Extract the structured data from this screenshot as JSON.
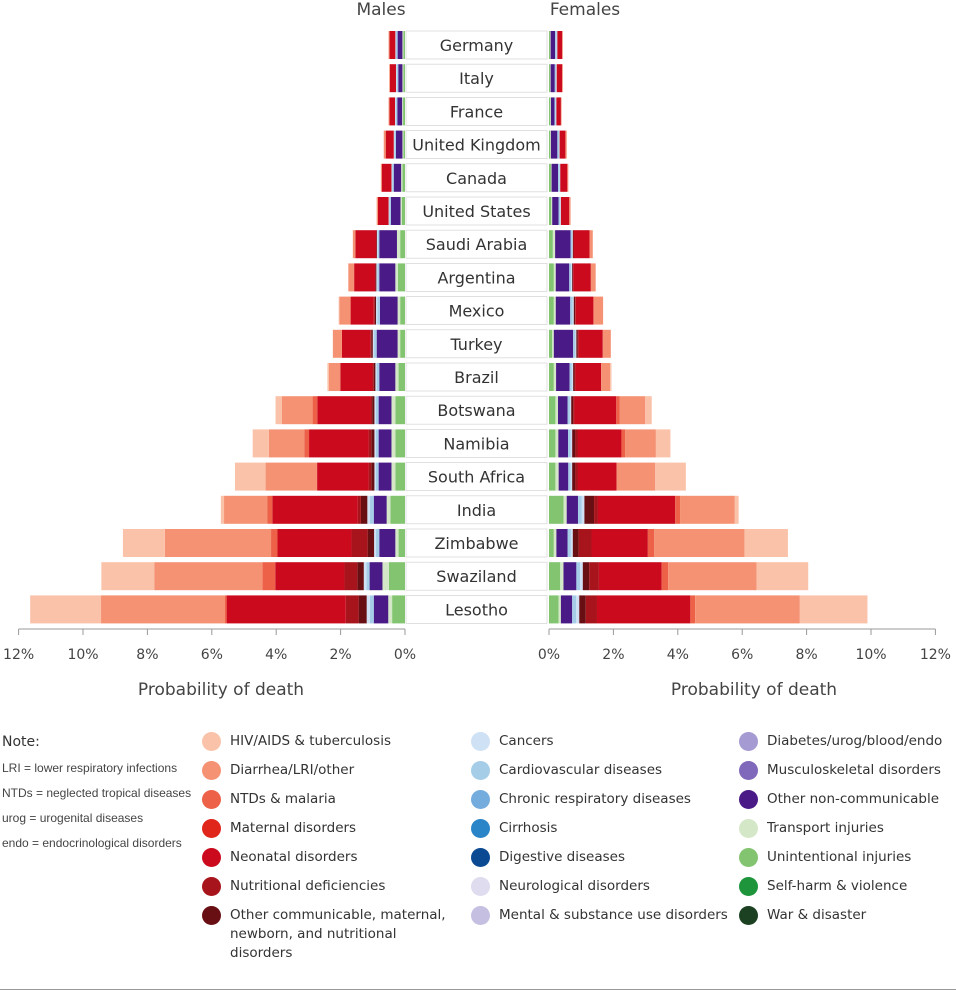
{
  "headers": {
    "males": "Males",
    "females": "Females"
  },
  "axis_titles": {
    "left": "Probability of death",
    "right": "Probability of death"
  },
  "note": {
    "title": "Note:",
    "lines": [
      "LRI = lower respiratory infections",
      "NTDs = neglected tropical diseases",
      "urog = urogenital diseases",
      "endo = endocrinological disorders"
    ]
  },
  "colors": {
    "hiv": "#fbc2aa",
    "diarrhea": "#f59273",
    "ntd": "#ec6148",
    "maternal": "#e0251a",
    "neonatal": "#cb0a1e",
    "nutrition": "#a8141b",
    "othercomm": "#680f14",
    "cancers": "#cfe1f4",
    "cardio": "#a5cde8",
    "chronicresp": "#74acdd",
    "cirrhosis": "#2a85c8",
    "digestive": "#0b4a93",
    "neuro": "#dedcee",
    "mental": "#c5c0e2",
    "diabetes": "#a59ad2",
    "musculo": "#8069bb",
    "otherncd": "#4a1a87",
    "transport": "#d4e8c8",
    "unintentional": "#82c46f",
    "selfharm": "#1e943b",
    "war": "#1c4022"
  },
  "legend": [
    [
      {
        "key": "hiv",
        "label": "HIV/AIDS & tuberculosis"
      },
      {
        "key": "diarrhea",
        "label": "Diarrhea/LRI/other"
      },
      {
        "key": "ntd",
        "label": "NTDs & malaria"
      },
      {
        "key": "maternal",
        "label": "Maternal disorders"
      },
      {
        "key": "neonatal",
        "label": "Neonatal disorders"
      },
      {
        "key": "nutrition",
        "label": "Nutritional deficiencies"
      },
      {
        "key": "othercomm",
        "label": "Other communicable, maternal, newborn, and nutritional disorders"
      }
    ],
    [
      {
        "key": "cancers",
        "label": "Cancers"
      },
      {
        "key": "cardio",
        "label": "Cardiovascular diseases"
      },
      {
        "key": "chronicresp",
        "label": "Chronic respiratory diseases"
      },
      {
        "key": "cirrhosis",
        "label": "Cirrhosis"
      },
      {
        "key": "digestive",
        "label": "Digestive diseases"
      },
      {
        "key": "neuro",
        "label": "Neurological disorders"
      },
      {
        "key": "mental",
        "label": "Mental & substance use disorders"
      }
    ],
    [
      {
        "key": "diabetes",
        "label": "Diabetes/urog/blood/endo"
      },
      {
        "key": "musculo",
        "label": "Musculoskeletal disorders"
      },
      {
        "key": "otherncd",
        "label": "Other non-communicable"
      },
      {
        "key": "transport",
        "label": "Transport injuries"
      },
      {
        "key": "unintentional",
        "label": "Unintentional injuries"
      },
      {
        "key": "selfharm",
        "label": "Self-harm & violence"
      },
      {
        "key": "war",
        "label": "War & disaster"
      }
    ]
  ],
  "chart_data": {
    "type": "bar",
    "orientation": "horizontal-diverging",
    "x_unit": "%",
    "xlim": [
      0,
      12
    ],
    "x_ticks": [
      "0%",
      "2%",
      "4%",
      "6%",
      "8%",
      "10%",
      "12%"
    ],
    "stack_order_from_center": [
      "unintentional",
      "transport",
      "otherncd",
      "cardio",
      "cancers",
      "othercomm",
      "nutrition",
      "neonatal",
      "ntd",
      "diarrhea",
      "hiv"
    ],
    "series": [
      {
        "name": "Unintentional injuries",
        "key": "unintentional"
      },
      {
        "name": "Transport injuries",
        "key": "transport"
      },
      {
        "name": "Other non-communicable",
        "key": "otherncd"
      },
      {
        "name": "Cardiovascular diseases",
        "key": "cardio"
      },
      {
        "name": "Cancers",
        "key": "cancers"
      },
      {
        "name": "Other communicable, maternal, newborn, and nutritional disorders",
        "key": "othercomm"
      },
      {
        "name": "Nutritional deficiencies",
        "key": "nutrition"
      },
      {
        "name": "Neonatal disorders",
        "key": "neonatal"
      },
      {
        "name": "NTDs & malaria",
        "key": "ntd"
      },
      {
        "name": "Diarrhea/LRI/other",
        "key": "diarrhea"
      },
      {
        "name": "HIV/AIDS & tuberculosis",
        "key": "hiv"
      }
    ],
    "countries": [
      {
        "name": "Germany",
        "males": {
          "unintentional": 0.05,
          "transport": 0.03,
          "otherncd": 0.15,
          "cardio": 0.05,
          "cancers": 0.02,
          "othercomm": 0.0,
          "nutrition": 0.0,
          "neonatal": 0.18,
          "ntd": 0.0,
          "diarrhea": 0.03,
          "hiv": 0.0
        },
        "females": {
          "unintentional": 0.03,
          "transport": 0.02,
          "otherncd": 0.14,
          "cardio": 0.05,
          "cancers": 0.02,
          "othercomm": 0.0,
          "nutrition": 0.0,
          "neonatal": 0.15,
          "ntd": 0.0,
          "diarrhea": 0.02,
          "hiv": 0.0
        }
      },
      {
        "name": "Italy",
        "males": {
          "unintentional": 0.05,
          "transport": 0.03,
          "otherncd": 0.13,
          "cardio": 0.05,
          "cancers": 0.02,
          "othercomm": 0.0,
          "nutrition": 0.0,
          "neonatal": 0.19,
          "ntd": 0.0,
          "diarrhea": 0.02,
          "hiv": 0.0
        },
        "females": {
          "unintentional": 0.03,
          "transport": 0.02,
          "otherncd": 0.13,
          "cardio": 0.04,
          "cancers": 0.02,
          "othercomm": 0.0,
          "nutrition": 0.0,
          "neonatal": 0.17,
          "ntd": 0.0,
          "diarrhea": 0.02,
          "hiv": 0.0
        }
      },
      {
        "name": "France",
        "males": {
          "unintentional": 0.06,
          "transport": 0.03,
          "otherncd": 0.15,
          "cardio": 0.05,
          "cancers": 0.02,
          "othercomm": 0.0,
          "nutrition": 0.0,
          "neonatal": 0.17,
          "ntd": 0.0,
          "diarrhea": 0.03,
          "hiv": 0.0
        },
        "females": {
          "unintentional": 0.04,
          "transport": 0.02,
          "otherncd": 0.11,
          "cardio": 0.04,
          "cancers": 0.02,
          "othercomm": 0.0,
          "nutrition": 0.0,
          "neonatal": 0.14,
          "ntd": 0.0,
          "diarrhea": 0.02,
          "hiv": 0.0
        }
      },
      {
        "name": "United Kingdom",
        "males": {
          "unintentional": 0.05,
          "transport": 0.03,
          "otherncd": 0.2,
          "cardio": 0.05,
          "cancers": 0.02,
          "othercomm": 0.0,
          "nutrition": 0.0,
          "neonatal": 0.25,
          "ntd": 0.0,
          "diarrhea": 0.06,
          "hiv": 0.0
        },
        "females": {
          "unintentional": 0.04,
          "transport": 0.02,
          "otherncd": 0.2,
          "cardio": 0.05,
          "cancers": 0.02,
          "othercomm": 0.0,
          "nutrition": 0.0,
          "neonatal": 0.18,
          "ntd": 0.0,
          "diarrhea": 0.04,
          "hiv": 0.0
        }
      },
      {
        "name": "Canada",
        "males": {
          "unintentional": 0.08,
          "transport": 0.04,
          "otherncd": 0.23,
          "cardio": 0.05,
          "cancers": 0.02,
          "othercomm": 0.0,
          "nutrition": 0.0,
          "neonatal": 0.3,
          "ntd": 0.0,
          "diarrhea": 0.03,
          "hiv": 0.0
        },
        "females": {
          "unintentional": 0.06,
          "transport": 0.02,
          "otherncd": 0.2,
          "cardio": 0.05,
          "cancers": 0.02,
          "othercomm": 0.0,
          "nutrition": 0.0,
          "neonatal": 0.22,
          "ntd": 0.0,
          "diarrhea": 0.03,
          "hiv": 0.0
        }
      },
      {
        "name": "United States",
        "males": {
          "unintentional": 0.1,
          "transport": 0.04,
          "otherncd": 0.3,
          "cardio": 0.05,
          "cancers": 0.02,
          "othercomm": 0.0,
          "nutrition": 0.0,
          "neonatal": 0.33,
          "ntd": 0.0,
          "diarrhea": 0.04,
          "hiv": 0.0
        },
        "females": {
          "unintentional": 0.07,
          "transport": 0.03,
          "otherncd": 0.2,
          "cardio": 0.05,
          "cancers": 0.02,
          "othercomm": 0.0,
          "nutrition": 0.0,
          "neonatal": 0.26,
          "ntd": 0.0,
          "diarrhea": 0.04,
          "hiv": 0.0
        }
      },
      {
        "name": "Saudi Arabia",
        "males": {
          "unintentional": 0.15,
          "transport": 0.1,
          "otherncd": 0.55,
          "cardio": 0.05,
          "cancers": 0.02,
          "othercomm": 0.02,
          "nutrition": 0.0,
          "neonatal": 0.65,
          "ntd": 0.0,
          "diarrhea": 0.08,
          "hiv": 0.0
        },
        "females": {
          "unintentional": 0.12,
          "transport": 0.07,
          "otherncd": 0.48,
          "cardio": 0.05,
          "cancers": 0.02,
          "othercomm": 0.02,
          "nutrition": 0.0,
          "neonatal": 0.5,
          "ntd": 0.0,
          "diarrhea": 0.1,
          "hiv": 0.0
        }
      },
      {
        "name": "Argentina",
        "males": {
          "unintentional": 0.22,
          "transport": 0.08,
          "otherncd": 0.5,
          "cardio": 0.06,
          "cancers": 0.03,
          "othercomm": 0.03,
          "nutrition": 0.0,
          "neonatal": 0.66,
          "ntd": 0.0,
          "diarrhea": 0.18,
          "hiv": 0.0
        },
        "females": {
          "unintentional": 0.15,
          "transport": 0.06,
          "otherncd": 0.42,
          "cardio": 0.06,
          "cancers": 0.03,
          "othercomm": 0.03,
          "nutrition": 0.0,
          "neonatal": 0.55,
          "ntd": 0.0,
          "diarrhea": 0.15,
          "hiv": 0.0
        }
      },
      {
        "name": "Mexico",
        "males": {
          "unintentional": 0.15,
          "transport": 0.08,
          "otherncd": 0.55,
          "cardio": 0.08,
          "cancers": 0.04,
          "othercomm": 0.04,
          "nutrition": 0.03,
          "neonatal": 0.72,
          "ntd": 0.0,
          "diarrhea": 0.35,
          "hiv": 0.02
        },
        "females": {
          "unintentional": 0.15,
          "transport": 0.06,
          "otherncd": 0.45,
          "cardio": 0.07,
          "cancers": 0.04,
          "othercomm": 0.04,
          "nutrition": 0.02,
          "neonatal": 0.55,
          "ntd": 0.0,
          "diarrhea": 0.3,
          "hiv": 0.0
        }
      },
      {
        "name": "Turkey",
        "males": {
          "unintentional": 0.15,
          "transport": 0.08,
          "otherncd": 0.65,
          "cardio": 0.08,
          "cancers": 0.04,
          "othercomm": 0.05,
          "nutrition": 0.03,
          "neonatal": 0.88,
          "ntd": 0.0,
          "diarrhea": 0.28,
          "hiv": 0.0
        },
        "females": {
          "unintentional": 0.1,
          "transport": 0.05,
          "otherncd": 0.6,
          "cardio": 0.07,
          "cancers": 0.03,
          "othercomm": 0.04,
          "nutrition": 0.03,
          "neonatal": 0.75,
          "ntd": 0.0,
          "diarrhea": 0.25,
          "hiv": 0.0
        }
      },
      {
        "name": "Brazil",
        "males": {
          "unintentional": 0.2,
          "transport": 0.1,
          "otherncd": 0.5,
          "cardio": 0.08,
          "cancers": 0.04,
          "othercomm": 0.05,
          "nutrition": 0.04,
          "neonatal": 1.0,
          "ntd": 0.0,
          "diarrhea": 0.35,
          "hiv": 0.05
        },
        "females": {
          "unintentional": 0.15,
          "transport": 0.07,
          "otherncd": 0.42,
          "cardio": 0.07,
          "cancers": 0.04,
          "othercomm": 0.04,
          "nutrition": 0.03,
          "neonatal": 0.8,
          "ntd": 0.0,
          "diarrhea": 0.28,
          "hiv": 0.04
        }
      },
      {
        "name": "Botswana",
        "males": {
          "unintentional": 0.3,
          "transport": 0.12,
          "otherncd": 0.4,
          "cardio": 0.08,
          "cancers": 0.05,
          "othercomm": 0.07,
          "nutrition": 0.05,
          "neonatal": 1.65,
          "ntd": 0.15,
          "diarrhea": 0.95,
          "hiv": 0.2
        },
        "females": {
          "unintentional": 0.2,
          "transport": 0.08,
          "otherncd": 0.3,
          "cardio": 0.07,
          "cancers": 0.04,
          "othercomm": 0.06,
          "nutrition": 0.04,
          "neonatal": 1.3,
          "ntd": 0.1,
          "diarrhea": 0.8,
          "hiv": 0.2
        }
      },
      {
        "name": "Namibia",
        "males": {
          "unintentional": 0.3,
          "transport": 0.12,
          "otherncd": 0.4,
          "cardio": 0.08,
          "cancers": 0.05,
          "othercomm": 0.1,
          "nutrition": 0.08,
          "neonatal": 1.85,
          "ntd": 0.15,
          "diarrhea": 1.1,
          "hiv": 0.5
        },
        "females": {
          "unintentional": 0.2,
          "transport": 0.09,
          "otherncd": 0.3,
          "cardio": 0.08,
          "cancers": 0.05,
          "othercomm": 0.1,
          "nutrition": 0.08,
          "neonatal": 1.35,
          "ntd": 0.12,
          "diarrhea": 0.95,
          "hiv": 0.45
        }
      },
      {
        "name": "South Africa",
        "males": {
          "unintentional": 0.3,
          "transport": 0.12,
          "otherncd": 0.4,
          "cardio": 0.08,
          "cancers": 0.05,
          "othercomm": 0.1,
          "nutrition": 0.08,
          "neonatal": 1.6,
          "ntd": 0.0,
          "diarrhea": 1.6,
          "hiv": 0.95
        },
        "females": {
          "unintentional": 0.2,
          "transport": 0.1,
          "otherncd": 0.3,
          "cardio": 0.07,
          "cancers": 0.05,
          "othercomm": 0.1,
          "nutrition": 0.08,
          "neonatal": 1.2,
          "ntd": 0.0,
          "diarrhea": 1.2,
          "hiv": 0.95
        }
      },
      {
        "name": "India",
        "males": {
          "unintentional": 0.45,
          "transport": 0.12,
          "otherncd": 0.4,
          "cardio": 0.12,
          "cancers": 0.08,
          "othercomm": 0.2,
          "nutrition": 0.1,
          "neonatal": 2.65,
          "ntd": 0.15,
          "diarrhea": 1.35,
          "hiv": 0.1
        },
        "females": {
          "unintentional": 0.45,
          "transport": 0.1,
          "otherncd": 0.35,
          "cardio": 0.12,
          "cancers": 0.08,
          "othercomm": 0.3,
          "nutrition": 0.12,
          "neonatal": 2.4,
          "ntd": 0.15,
          "diarrhea": 1.7,
          "hiv": 0.12
        }
      },
      {
        "name": "Zimbabwe",
        "males": {
          "unintentional": 0.2,
          "transport": 0.1,
          "otherncd": 0.5,
          "cardio": 0.1,
          "cancers": 0.06,
          "othercomm": 0.2,
          "nutrition": 0.5,
          "neonatal": 2.3,
          "ntd": 0.2,
          "diarrhea": 3.3,
          "hiv": 1.3
        },
        "females": {
          "unintentional": 0.15,
          "transport": 0.08,
          "otherncd": 0.35,
          "cardio": 0.1,
          "cancers": 0.06,
          "othercomm": 0.18,
          "nutrition": 0.4,
          "neonatal": 1.75,
          "ntd": 0.2,
          "diarrhea": 2.8,
          "hiv": 1.35
        }
      },
      {
        "name": "Swaziland",
        "males": {
          "unintentional": 0.5,
          "transport": 0.2,
          "otherncd": 0.4,
          "cardio": 0.1,
          "cancers": 0.08,
          "othercomm": 0.2,
          "nutrition": 0.4,
          "neonatal": 2.15,
          "ntd": 0.4,
          "diarrhea": 3.35,
          "hiv": 1.65
        },
        "females": {
          "unintentional": 0.35,
          "transport": 0.1,
          "otherncd": 0.4,
          "cardio": 0.12,
          "cancers": 0.08,
          "othercomm": 0.2,
          "nutrition": 0.3,
          "neonatal": 1.95,
          "ntd": 0.2,
          "diarrhea": 2.75,
          "hiv": 1.6
        }
      },
      {
        "name": "Lesotho",
        "males": {
          "unintentional": 0.4,
          "transport": 0.12,
          "otherncd": 0.45,
          "cardio": 0.12,
          "cancers": 0.1,
          "othercomm": 0.25,
          "nutrition": 0.4,
          "neonatal": 3.7,
          "ntd": 0.05,
          "diarrhea": 3.85,
          "hiv": 2.2
        },
        "females": {
          "unintentional": 0.3,
          "transport": 0.07,
          "otherncd": 0.35,
          "cardio": 0.12,
          "cancers": 0.1,
          "othercomm": 0.2,
          "nutrition": 0.35,
          "neonatal": 2.9,
          "ntd": 0.15,
          "diarrhea": 3.25,
          "hiv": 2.1
        }
      }
    ]
  }
}
